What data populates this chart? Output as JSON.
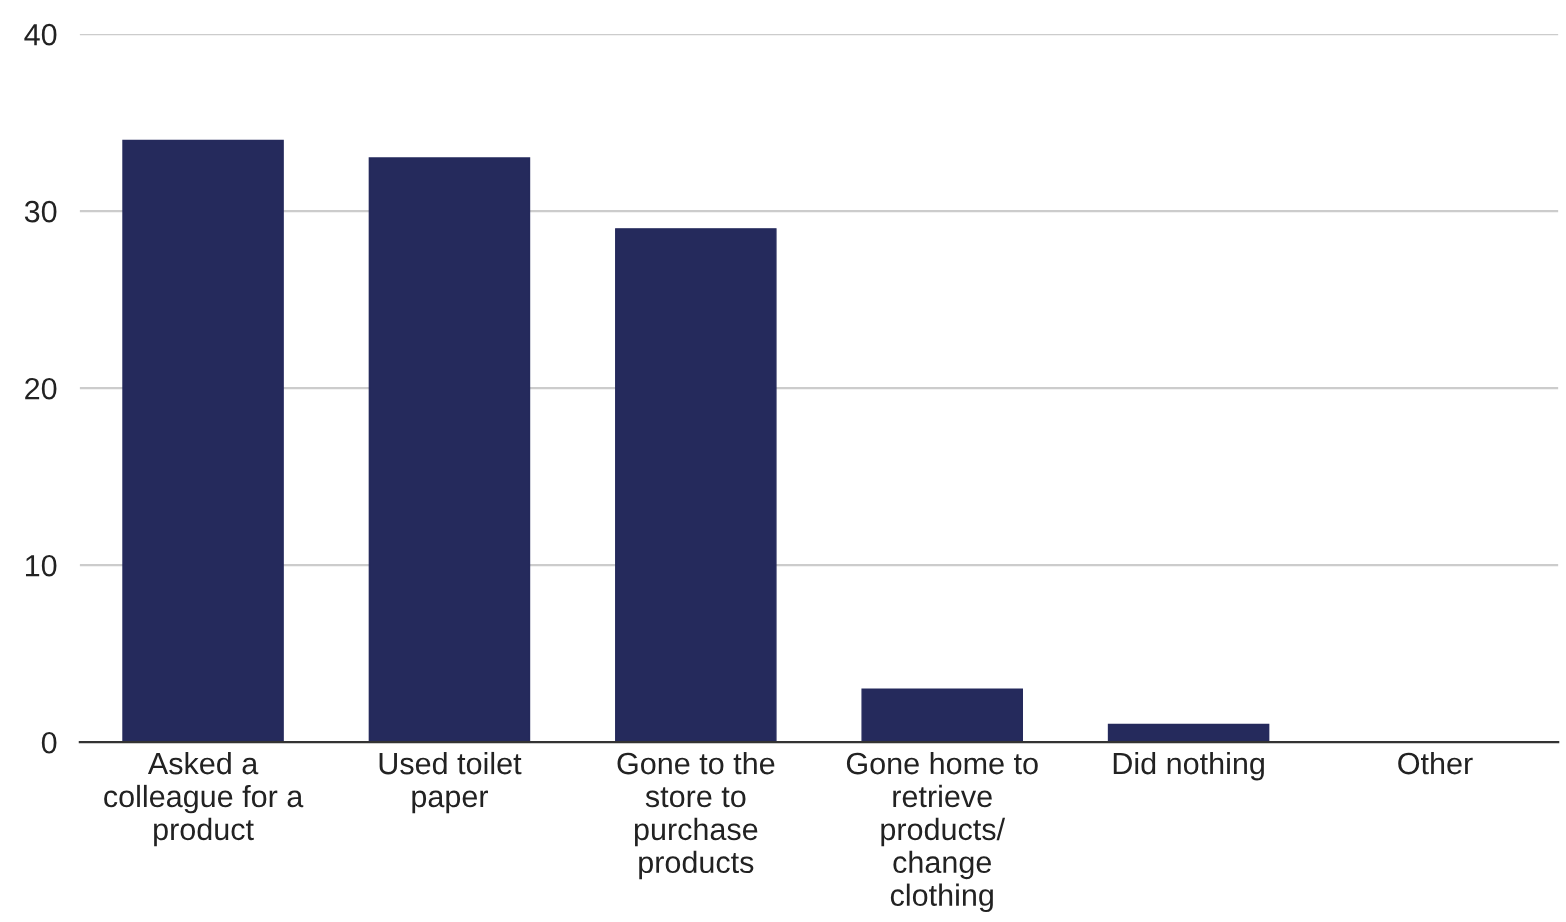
{
  "chart_data": {
    "type": "bar",
    "categories": [
      "Asked a\ncolleague for a\nproduct",
      "Used toilet\npaper",
      "Gone to the\nstore to\npurchase\nproducts",
      "Gone home to\nretrieve\nproducts/\nchange\nclothing",
      "Did nothing",
      "Other"
    ],
    "values": [
      34,
      33,
      29,
      3,
      1,
      0
    ],
    "color": "#252a5c",
    "ylim": [
      0,
      40
    ],
    "yticks": [
      0,
      10,
      20,
      30,
      40
    ],
    "grid": "y"
  }
}
